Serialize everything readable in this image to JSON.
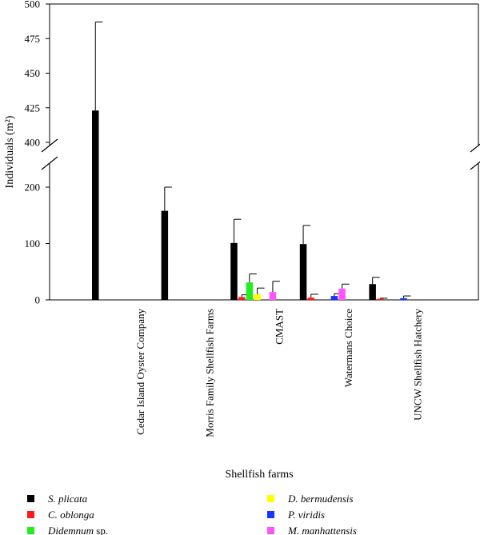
{
  "chart_data": {
    "type": "bar",
    "ylabel": "Individuals (m²)",
    "xlabel": "Shellfish farms",
    "categories": [
      "Cedar Island Oyster Company",
      "Morris Family Shellfish Farms",
      "CMAST",
      "Watermans Choice",
      "UNCW Shellfish Hatchery"
    ],
    "axis_break": {
      "lower_range": [
        0,
        230
      ],
      "upper_range": [
        400,
        500
      ]
    },
    "yticks_lower": [
      0,
      100,
      200
    ],
    "yticks_upper": [
      400,
      425,
      450,
      475,
      500
    ],
    "series": [
      {
        "name_italic": "S. plicata",
        "name_rest": "",
        "color": "#000000",
        "values": [
          423,
          158,
          101,
          99,
          28
        ],
        "errors": [
          64,
          42,
          42,
          33,
          12
        ]
      },
      {
        "name_italic": "C. oblonga",
        "name_rest": "",
        "color": "#ff1a1a",
        "values": [
          0,
          0,
          5,
          4,
          2
        ],
        "errors": [
          0,
          0,
          4,
          6,
          1
        ]
      },
      {
        "name_italic": "Didemnum",
        "name_rest": " sp.",
        "color": "#22ee22",
        "values": [
          0,
          0,
          31,
          0,
          0
        ],
        "errors": [
          0,
          0,
          15,
          0,
          0
        ]
      },
      {
        "name_italic": "D. bermudensis",
        "name_rest": "",
        "color": "#ffff00",
        "values": [
          0,
          0,
          10,
          0,
          0
        ],
        "errors": [
          0,
          0,
          11,
          0,
          0
        ]
      },
      {
        "name_italic": "P. viridis",
        "name_rest": "",
        "color": "#1a33ff",
        "values": [
          0,
          0,
          0,
          7,
          3
        ],
        "errors": [
          0,
          0,
          0,
          4,
          4
        ]
      },
      {
        "name_italic": "M. manhattensis",
        "name_rest": "",
        "color": "#ff55ff",
        "values": [
          0,
          0,
          14,
          20,
          0
        ],
        "errors": [
          0,
          0,
          19,
          8,
          0
        ]
      }
    ],
    "legend_placement": "bottom",
    "grid": false
  }
}
